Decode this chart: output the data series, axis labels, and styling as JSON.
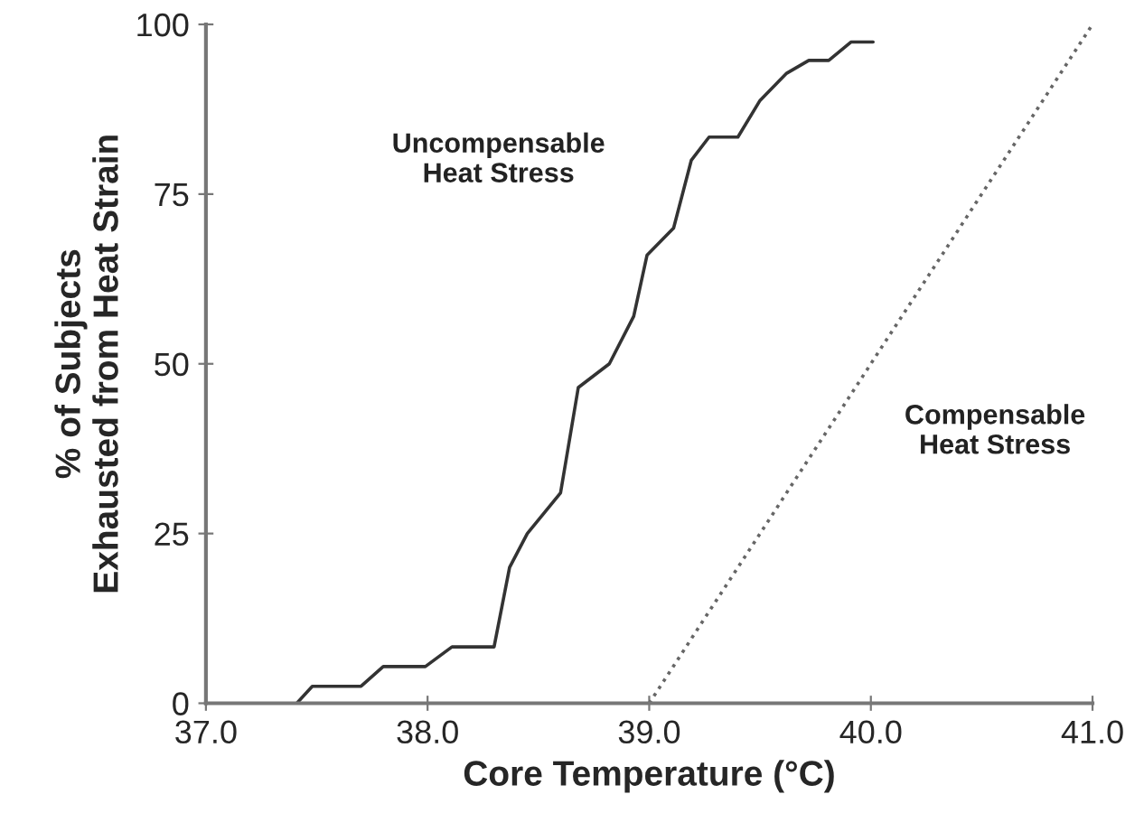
{
  "chart_data": {
    "type": "line",
    "xlabel": "Core Temperature (°C)",
    "ylabel": "% of Subjects\nExhausted from Heat Strain",
    "xlim": [
      37.0,
      41.0
    ],
    "ylim": [
      0,
      100
    ],
    "xticks": [
      {
        "value": 37.0,
        "label": "37.0"
      },
      {
        "value": 38.0,
        "label": "38.0"
      },
      {
        "value": 39.0,
        "label": "39.0"
      },
      {
        "value": 40.0,
        "label": "40.0"
      },
      {
        "value": 41.0,
        "label": "41.0"
      }
    ],
    "yticks": [
      0,
      25,
      50,
      75,
      100
    ],
    "grid": false,
    "marker": "none",
    "series": [
      {
        "color": "#333333",
        "line_style": "solid",
        "x": [
          37.41,
          37.48,
          37.7,
          37.8,
          37.99,
          38.11,
          38.3,
          38.37,
          38.45,
          38.6,
          38.68,
          38.82,
          38.93,
          38.99,
          39.11,
          39.19,
          39.27,
          39.4,
          39.5,
          39.62,
          39.72,
          39.81,
          39.91,
          40.01
        ],
        "values": [
          0,
          2.5,
          2.5,
          5.4,
          5.4,
          8.3,
          8.3,
          20,
          25,
          31,
          46.5,
          50,
          57,
          66,
          70,
          80,
          83.4,
          83.4,
          88.8,
          92.8,
          94.7,
          94.7,
          97.4,
          97.4
        ]
      },
      {
        "color": "#666666",
        "line_style": "dotted",
        "x": [
          39.0,
          41.0
        ],
        "values": [
          0,
          100
        ]
      }
    ],
    "annotations": [
      "Uncompensable\nHeat Stress",
      "Compensable\nHeat Stress"
    ]
  }
}
